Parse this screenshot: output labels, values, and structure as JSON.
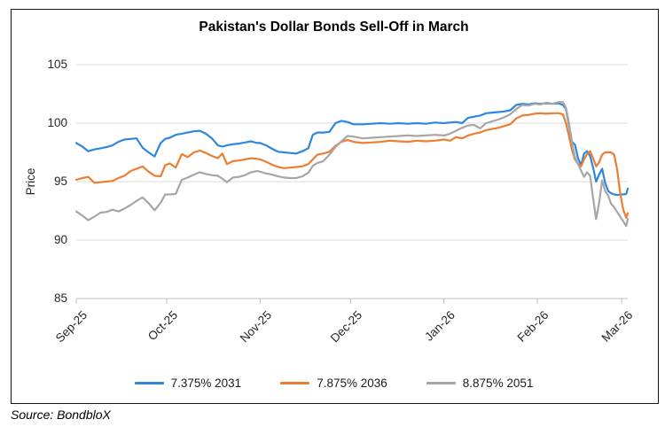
{
  "source_note": "Source: BondbloX",
  "chart_data": {
    "type": "line",
    "title": "Pakistan's Dollar Bonds Sell-Off in March",
    "ylabel": "Price",
    "ylim": [
      85,
      105
    ],
    "yticks": [
      85,
      90,
      95,
      100,
      105
    ],
    "grid": "horizontal",
    "legend_position": "bottom",
    "x_unit": "days since 2025-09-01",
    "x_range_days": [
      0,
      183
    ],
    "xticks": [
      {
        "label": "Sep-25",
        "day": 0
      },
      {
        "label": "Oct-25",
        "day": 30
      },
      {
        "label": "Nov-25",
        "day": 61
      },
      {
        "label": "Dec-25",
        "day": 91
      },
      {
        "label": "Jan-26",
        "day": 122
      },
      {
        "label": "Feb-26",
        "day": 153
      },
      {
        "label": "Mar-26",
        "day": 181
      }
    ],
    "days": [
      0,
      2,
      4,
      6,
      8,
      10,
      12,
      14,
      16,
      18,
      20,
      22,
      24,
      26,
      28,
      29.5,
      31,
      33,
      35,
      37,
      39,
      41,
      43,
      45,
      47,
      48.5,
      50,
      52,
      54,
      56,
      58,
      60,
      61,
      63,
      65,
      67,
      69,
      71,
      73,
      75,
      77,
      78.5,
      80,
      82,
      84,
      86,
      88,
      90,
      92,
      95,
      98,
      101,
      104,
      107,
      110,
      113,
      116,
      119,
      122,
      124,
      126,
      128,
      130,
      132,
      134,
      136,
      138,
      140,
      142,
      144,
      146,
      148,
      150,
      152,
      154,
      156,
      158,
      160,
      161.5,
      162.5,
      163.5,
      164.5,
      165.5,
      166.5,
      167.5,
      168.5,
      169.5,
      170.5,
      171.5,
      172.5,
      173.5,
      174.5,
      175.5,
      176.5,
      177.5,
      178.5,
      179.5,
      180.5,
      181.5,
      182.5,
      183
    ],
    "series": [
      {
        "name": "7.375% 2031",
        "color": "#2E86DE",
        "values": [
          98.3,
          98.0,
          97.6,
          97.75,
          97.85,
          97.95,
          98.1,
          98.4,
          98.6,
          98.65,
          98.7,
          97.9,
          97.5,
          97.15,
          98.3,
          98.65,
          98.75,
          99.0,
          99.1,
          99.2,
          99.3,
          99.35,
          99.1,
          98.7,
          98.1,
          98.0,
          98.1,
          98.2,
          98.25,
          98.35,
          98.45,
          98.3,
          98.3,
          98.1,
          97.8,
          97.55,
          97.5,
          97.45,
          97.4,
          97.6,
          97.85,
          99.0,
          99.2,
          99.2,
          99.25,
          100.0,
          100.2,
          100.1,
          99.9,
          99.9,
          99.95,
          100.0,
          99.95,
          100.0,
          99.95,
          100.0,
          99.95,
          100.05,
          100.0,
          100.05,
          100.1,
          100.0,
          100.45,
          100.55,
          100.65,
          100.85,
          100.9,
          100.95,
          101.0,
          101.1,
          101.55,
          101.65,
          101.6,
          101.7,
          101.65,
          101.7,
          101.65,
          101.7,
          101.55,
          101.2,
          99.8,
          98.4,
          98.15,
          97.0,
          96.4,
          97.4,
          97.6,
          97.2,
          96.2,
          95.0,
          95.6,
          96.1,
          94.9,
          94.2,
          94.0,
          93.9,
          93.85,
          93.9,
          93.9,
          93.95,
          94.4
        ]
      },
      {
        "name": "7.875% 2036",
        "color": "#ED7D31",
        "values": [
          95.15,
          95.3,
          95.4,
          94.9,
          94.95,
          95.0,
          95.05,
          95.3,
          95.5,
          95.9,
          96.1,
          96.3,
          95.85,
          95.5,
          95.45,
          96.4,
          96.55,
          96.2,
          97.35,
          97.1,
          97.5,
          97.65,
          97.45,
          97.2,
          97.0,
          97.4,
          96.5,
          96.75,
          96.8,
          96.9,
          97.0,
          96.95,
          96.9,
          96.7,
          96.45,
          96.25,
          96.15,
          96.2,
          96.25,
          96.3,
          96.5,
          96.9,
          97.3,
          97.4,
          97.55,
          98.05,
          98.4,
          98.55,
          98.4,
          98.3,
          98.35,
          98.4,
          98.5,
          98.45,
          98.4,
          98.5,
          98.45,
          98.5,
          98.6,
          98.5,
          98.8,
          98.7,
          98.95,
          99.1,
          99.2,
          99.4,
          99.5,
          99.6,
          99.75,
          99.9,
          100.4,
          100.65,
          100.7,
          100.8,
          100.85,
          100.8,
          100.85,
          100.85,
          100.75,
          100.0,
          98.9,
          97.7,
          96.9,
          96.5,
          96.3,
          96.9,
          97.35,
          97.6,
          97.0,
          96.3,
          96.65,
          97.3,
          97.5,
          97.5,
          97.5,
          97.3,
          96.0,
          94.0,
          92.6,
          91.9,
          92.3
        ]
      },
      {
        "name": "8.875% 2051",
        "color": "#A6A6A6",
        "values": [
          92.45,
          92.1,
          91.7,
          92.0,
          92.35,
          92.4,
          92.6,
          92.45,
          92.7,
          93.0,
          93.35,
          93.65,
          93.15,
          92.55,
          93.2,
          93.9,
          93.9,
          93.95,
          95.15,
          95.35,
          95.6,
          95.8,
          95.65,
          95.55,
          95.5,
          95.25,
          94.95,
          95.35,
          95.4,
          95.55,
          95.8,
          95.9,
          95.85,
          95.7,
          95.6,
          95.45,
          95.35,
          95.3,
          95.3,
          95.45,
          95.75,
          96.35,
          96.6,
          96.75,
          97.3,
          97.95,
          98.45,
          98.9,
          98.85,
          98.7,
          98.75,
          98.8,
          98.85,
          98.9,
          98.95,
          98.9,
          98.95,
          99.0,
          98.95,
          99.1,
          99.35,
          99.6,
          99.8,
          99.85,
          99.55,
          100.0,
          100.15,
          100.3,
          100.5,
          100.75,
          101.2,
          101.55,
          101.5,
          101.65,
          101.6,
          101.75,
          101.65,
          101.8,
          101.8,
          101.3,
          100.0,
          98.3,
          97.1,
          96.5,
          95.95,
          95.4,
          95.8,
          95.5,
          93.6,
          91.8,
          93.2,
          95.1,
          94.2,
          93.8,
          93.1,
          92.8,
          92.4,
          92.0,
          91.6,
          91.2,
          91.8
        ]
      }
    ]
  },
  "style": {
    "gridline_color": "#DBDBDB",
    "axis_color": "#BFBFBF",
    "label_color": "#262626"
  }
}
